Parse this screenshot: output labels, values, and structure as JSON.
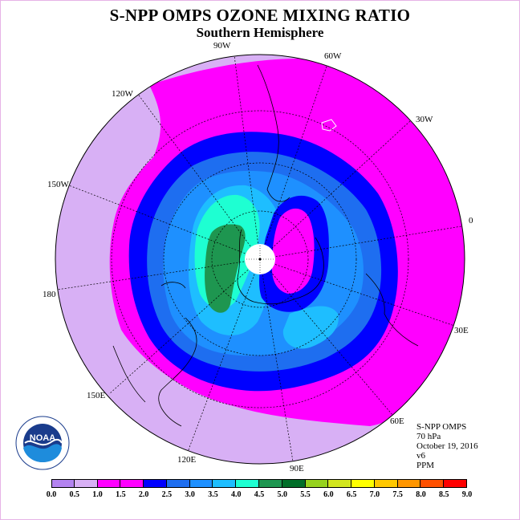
{
  "title": "S-NPP OMPS OZONE MIXING RATIO",
  "subtitle": "Southern Hemisphere",
  "longitude_labels": [
    "90W",
    "60W",
    "30W",
    "0",
    "30E",
    "60E",
    "90E",
    "120E",
    "150E",
    "180",
    "150W",
    "120W"
  ],
  "info": {
    "instrument": "S-NPP OMPS",
    "level": "70 hPa",
    "date": "October 19, 2016",
    "version": "v6",
    "units": "PPM"
  },
  "logo": {
    "name": "noaa-logo",
    "text": "NOAA"
  },
  "colorbar": {
    "ticks": [
      "0.0",
      "0.5",
      "1.0",
      "1.5",
      "2.0",
      "2.5",
      "3.0",
      "3.5",
      "4.0",
      "4.5",
      "5.0",
      "5.5",
      "6.0",
      "6.5",
      "7.0",
      "7.5",
      "8.0",
      "8.5",
      "9.0"
    ],
    "colors": [
      "#b383f0",
      "#d8b0f5",
      "#ff00ff",
      "#ff00ff",
      "#0000ff",
      "#1e6ef0",
      "#1e90ff",
      "#1ebeff",
      "#1effd2",
      "#1e9650",
      "#006e28",
      "#96d21e",
      "#d2e61e",
      "#ffff00",
      "#ffc800",
      "#ff9600",
      "#ff5000",
      "#ff0000",
      "#8c5a3c"
    ]
  }
}
